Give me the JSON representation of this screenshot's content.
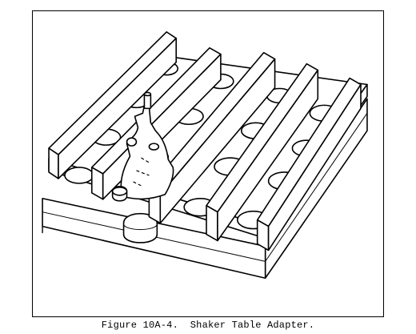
{
  "figure": {
    "caption": "Figure 10A-4.  Shaker Table Adapter."
  }
}
